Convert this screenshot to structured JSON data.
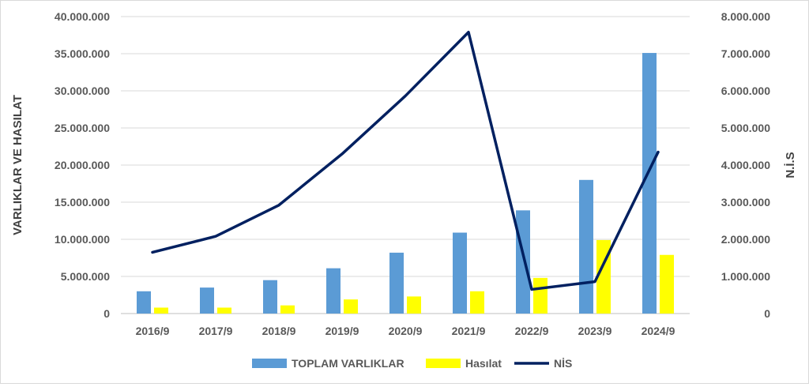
{
  "chart_data": {
    "type": "bar",
    "categories": [
      "2016/9",
      "2017/9",
      "2018/9",
      "2019/9",
      "2020/9",
      "2021/9",
      "2022/9",
      "2023/9",
      "2024/9"
    ],
    "series": [
      {
        "name": "TOPLAM VARLIKLAR",
        "kind": "bar",
        "axis": "left",
        "color": "#5b9bd5",
        "values": [
          3000000,
          3500000,
          4500000,
          6100000,
          8200000,
          10900000,
          13900000,
          18000000,
          35100000
        ]
      },
      {
        "name": "Hasılat",
        "kind": "bar",
        "axis": "left",
        "color": "#ffff00",
        "values": [
          800000,
          800000,
          1100000,
          1900000,
          2300000,
          3000000,
          4800000,
          9900000,
          7900000
        ]
      },
      {
        "name": "NİS",
        "kind": "line",
        "axis": "right",
        "color": "#002060",
        "values": [
          1650000,
          2080000,
          2920000,
          4300000,
          5860000,
          7580000,
          650000,
          860000,
          4350000
        ]
      }
    ],
    "ylabel": "VARLIKLAR VE HASILAT",
    "y2label": "N.İ.S",
    "ylim": [
      0,
      40000000
    ],
    "y2lim": [
      0,
      8000000
    ],
    "yticks": [
      "0",
      "5.000.000",
      "10.000.000",
      "15.000.000",
      "20.000.000",
      "25.000.000",
      "30.000.000",
      "35.000.000",
      "40.000.000"
    ],
    "y2ticks": [
      "0",
      "1.000.000",
      "2.000.000",
      "3.000.000",
      "4.000.000",
      "5.000.000",
      "6.000.000",
      "7.000.000",
      "8.000.000"
    ],
    "grid": true,
    "legend": "bottom"
  }
}
